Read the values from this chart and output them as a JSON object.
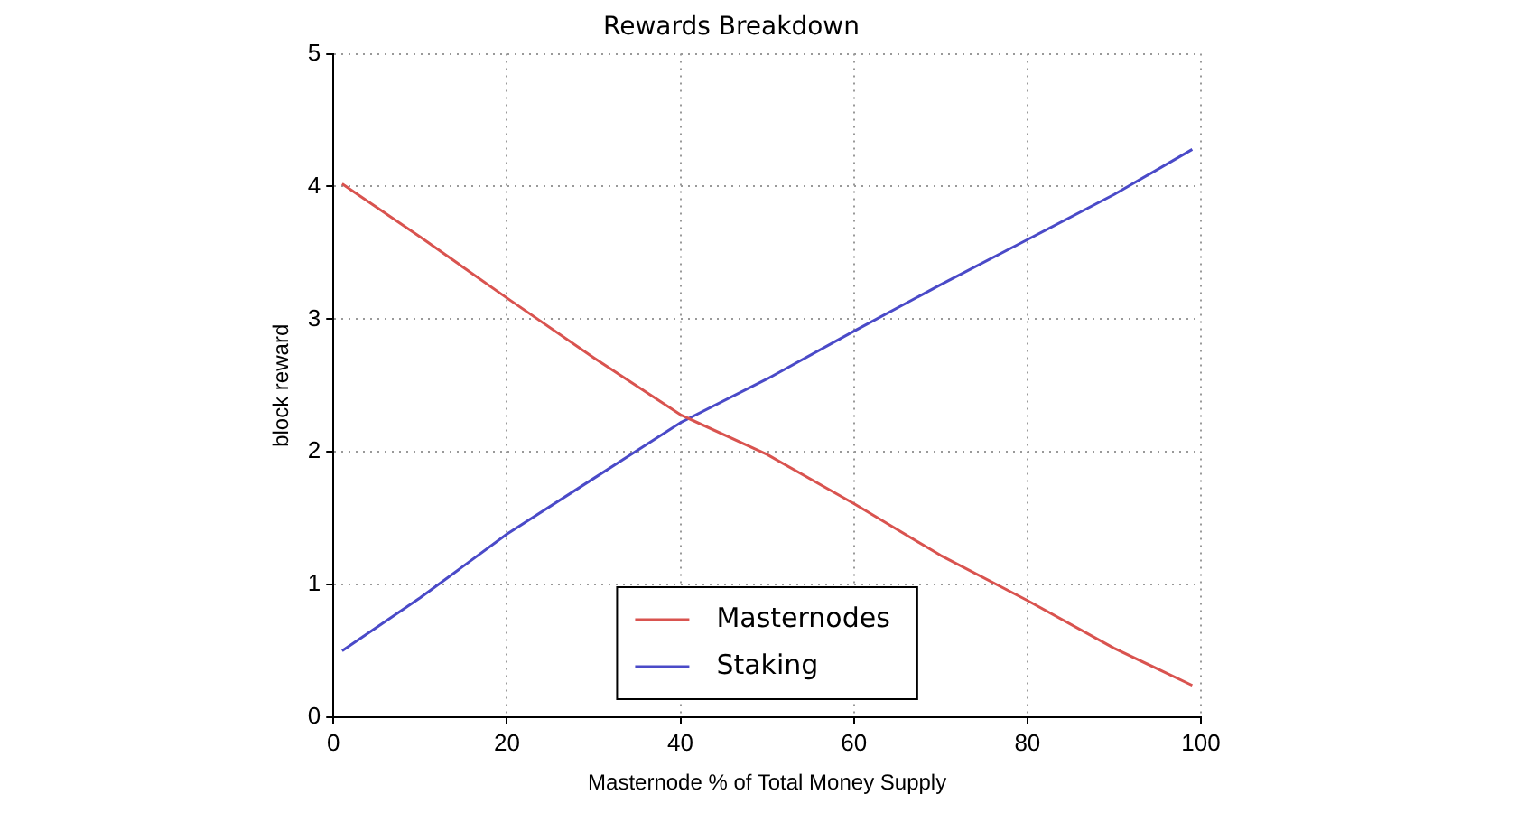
{
  "chart_data": {
    "type": "line",
    "title": "Rewards Breakdown",
    "xlabel": "Masternode % of Total Money Supply",
    "ylabel": "block reward",
    "x": [
      1,
      10,
      20,
      30,
      40,
      50,
      60,
      70,
      80,
      90,
      99
    ],
    "series": [
      {
        "name": "Masternodes",
        "color": "#d9534f",
        "values": [
          4.02,
          3.62,
          3.16,
          2.71,
          2.28,
          1.98,
          1.61,
          1.22,
          0.88,
          0.52,
          0.24
        ]
      },
      {
        "name": "Staking",
        "color": "#4a4ac8",
        "values": [
          0.5,
          0.9,
          1.38,
          1.8,
          2.22,
          2.55,
          2.91,
          3.26,
          3.6,
          3.94,
          4.28
        ]
      }
    ],
    "xlim": [
      0,
      100
    ],
    "xticks": [
      0,
      20,
      40,
      60,
      80,
      100
    ],
    "ylim": [
      0,
      5
    ],
    "yticks": [
      0,
      1,
      2,
      3,
      4,
      5
    ],
    "grid": true,
    "legend": "bottom",
    "marker": "none",
    "line_style": "solid"
  }
}
